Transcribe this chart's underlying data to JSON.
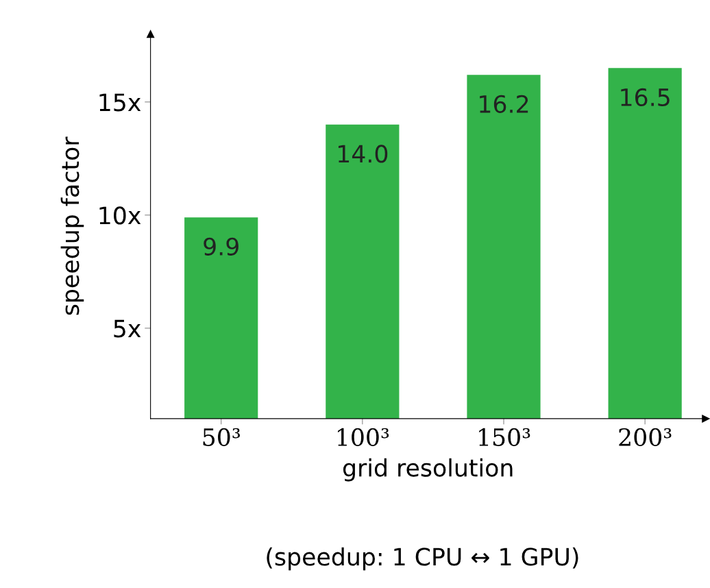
{
  "chart_data": {
    "type": "bar",
    "categories": [
      "50³",
      "100³",
      "150³",
      "200³"
    ],
    "values": [
      9.9,
      14.0,
      16.2,
      16.5
    ],
    "color": "#33b34a",
    "value_labels": [
      "9.9",
      "14.0",
      "16.2",
      "16.5"
    ],
    "xlabel": "grid resolution",
    "ylabel": "speedup factor",
    "ylim": [
      1,
      18
    ],
    "yticks": [
      {
        "value": 5,
        "label": "5x"
      },
      {
        "value": 10,
        "label": "10x"
      },
      {
        "value": 15,
        "label": "15x"
      }
    ],
    "grid": false,
    "legend": false,
    "annotations": [
      "(speedup: 1 CPU ↔ 1 GPU)"
    ]
  }
}
